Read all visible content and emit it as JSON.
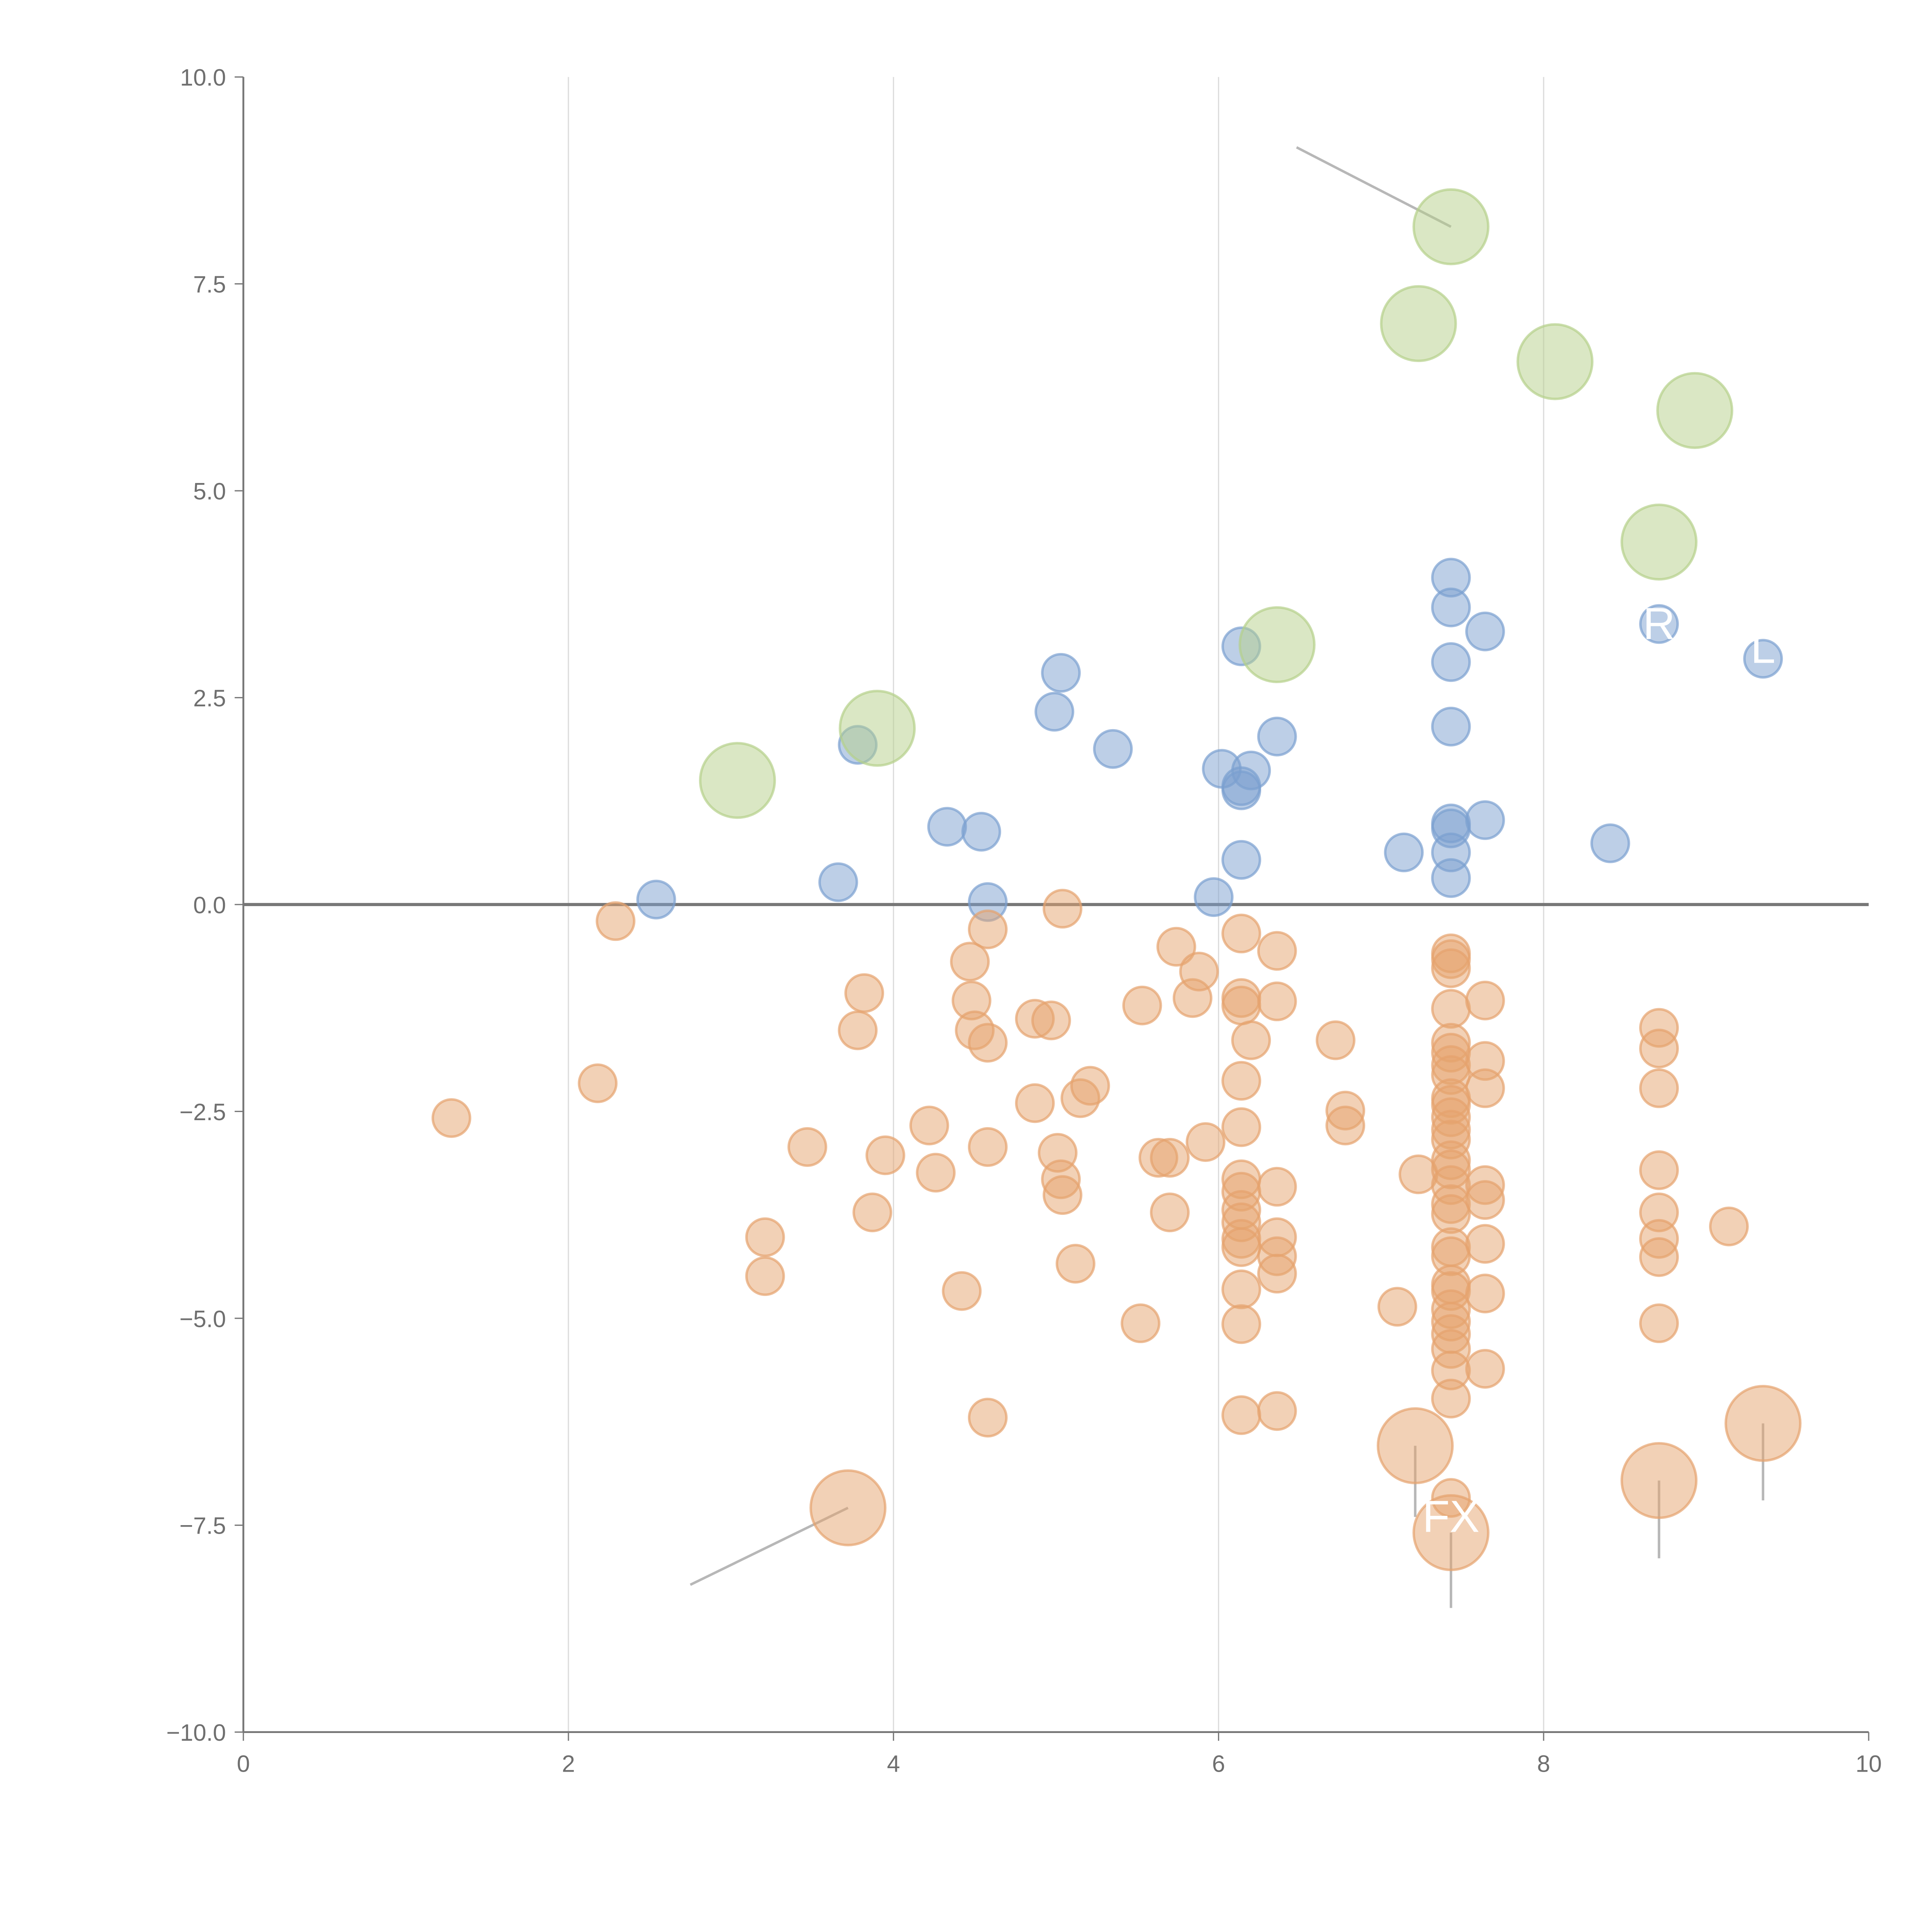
{
  "chart_data": {
    "type": "scatter",
    "title": "",
    "xlabel": "",
    "ylabel": "",
    "xlim": [
      0,
      10
    ],
    "ylim": [
      -10,
      10
    ],
    "grid": "vertical",
    "x_ticks": [
      "0",
      "2",
      "4",
      "6",
      "8",
      "10"
    ],
    "y_ticks": [
      "10.0",
      "7.5",
      "5.0",
      "2.5",
      "0.0",
      "−2.5",
      "−5.0",
      "−7.5",
      "−10.0"
    ],
    "colors": {
      "blue": "#7b9fd0",
      "green": "#b5d08a",
      "orange": "#e5a36d"
    },
    "series": [
      {
        "name": "blue",
        "color": "#7b9fd0",
        "size": 1,
        "points": [
          [
            2.54,
            0.06
          ],
          [
            3.66,
            0.27
          ],
          [
            3.78,
            1.93
          ],
          [
            4.33,
            0.94
          ],
          [
            4.54,
            0.88
          ],
          [
            4.58,
            0.03
          ],
          [
            5.03,
            2.8
          ],
          [
            4.99,
            2.33
          ],
          [
            5.35,
            1.88
          ],
          [
            5.97,
            0.09
          ],
          [
            6.02,
            1.64
          ],
          [
            6.14,
            3.12
          ],
          [
            6.2,
            1.62
          ],
          [
            6.14,
            1.43
          ],
          [
            6.14,
            1.38
          ],
          [
            6.14,
            0.54
          ],
          [
            6.36,
            2.03
          ],
          [
            7.14,
            0.63
          ],
          [
            7.43,
            3.95
          ],
          [
            7.43,
            3.59
          ],
          [
            7.43,
            2.93
          ],
          [
            7.43,
            2.15
          ],
          [
            7.43,
            0.98
          ],
          [
            7.43,
            0.92
          ],
          [
            7.43,
            0.63
          ],
          [
            7.43,
            0.32
          ],
          [
            7.64,
            3.3
          ],
          [
            7.64,
            1.02
          ],
          [
            8.41,
            0.74
          ],
          [
            8.71,
            3.39
          ],
          [
            9.35,
            2.97
          ]
        ]
      },
      {
        "name": "green",
        "color": "#b5d08a",
        "size": 4,
        "points": [
          [
            3.04,
            1.5
          ],
          [
            3.9,
            2.13
          ],
          [
            6.36,
            3.14
          ],
          [
            7.23,
            7.02
          ],
          [
            7.43,
            8.19
          ],
          [
            8.07,
            6.56
          ],
          [
            8.71,
            4.38
          ],
          [
            8.93,
            5.97
          ]
        ]
      },
      {
        "name": "orange",
        "color": "#e5a36d",
        "size": 1,
        "points": [
          [
            1.28,
            -2.58
          ],
          [
            2.18,
            -2.16
          ],
          [
            2.29,
            -0.2
          ],
          [
            3.21,
            -4.02
          ],
          [
            3.21,
            -4.49
          ],
          [
            3.47,
            -2.93
          ],
          [
            3.78,
            -1.52
          ],
          [
            3.82,
            -1.07
          ],
          [
            3.87,
            -3.72
          ],
          [
            3.95,
            -3.03
          ],
          [
            4.22,
            -2.67
          ],
          [
            4.26,
            -3.24
          ],
          [
            4.42,
            -4.67
          ],
          [
            4.47,
            -0.69
          ],
          [
            4.48,
            -1.16
          ],
          [
            4.5,
            -1.52
          ],
          [
            4.58,
            -0.3
          ],
          [
            4.58,
            -1.67
          ],
          [
            4.58,
            -2.93
          ],
          [
            4.58,
            -6.2
          ],
          [
            4.87,
            -2.4
          ],
          [
            4.87,
            -1.38
          ],
          [
            4.97,
            -1.4
          ],
          [
            5.01,
            -3.0
          ],
          [
            5.03,
            -3.32
          ],
          [
            5.04,
            -0.05
          ],
          [
            5.04,
            -3.51
          ],
          [
            5.12,
            -4.34
          ],
          [
            5.15,
            -2.34
          ],
          [
            5.21,
            -2.19
          ],
          [
            5.52,
            -5.06
          ],
          [
            5.53,
            -1.22
          ],
          [
            5.63,
            -3.06
          ],
          [
            5.7,
            -3.06
          ],
          [
            5.7,
            -3.72
          ],
          [
            5.74,
            -0.51
          ],
          [
            5.84,
            -1.13
          ],
          [
            5.88,
            -0.81
          ],
          [
            5.92,
            -2.87
          ],
          [
            6.14,
            -0.35
          ],
          [
            6.14,
            -1.13
          ],
          [
            6.14,
            -1.22
          ],
          [
            6.14,
            -2.13
          ],
          [
            6.14,
            -2.69
          ],
          [
            6.14,
            -3.32
          ],
          [
            6.14,
            -3.47
          ],
          [
            6.14,
            -3.69
          ],
          [
            6.14,
            -3.84
          ],
          [
            6.14,
            -4.04
          ],
          [
            6.14,
            -4.14
          ],
          [
            6.14,
            -4.65
          ],
          [
            6.14,
            -5.07
          ],
          [
            6.14,
            -6.17
          ],
          [
            6.2,
            -1.64
          ],
          [
            6.36,
            -0.56
          ],
          [
            6.36,
            -1.17
          ],
          [
            6.36,
            -3.41
          ],
          [
            6.36,
            -4.02
          ],
          [
            6.36,
            -4.25
          ],
          [
            6.36,
            -4.46
          ],
          [
            6.36,
            -6.12
          ],
          [
            6.72,
            -1.64
          ],
          [
            6.78,
            -2.49
          ],
          [
            6.78,
            -2.67
          ],
          [
            7.1,
            -4.86
          ],
          [
            7.23,
            -3.26
          ],
          [
            7.43,
            -0.59
          ],
          [
            7.43,
            -0.66
          ],
          [
            7.43,
            -0.77
          ],
          [
            7.43,
            -1.26
          ],
          [
            7.43,
            -1.67
          ],
          [
            7.43,
            -1.79
          ],
          [
            7.43,
            -1.94
          ],
          [
            7.43,
            -2.06
          ],
          [
            7.43,
            -2.34
          ],
          [
            7.43,
            -2.42
          ],
          [
            7.43,
            -2.57
          ],
          [
            7.43,
            -2.72
          ],
          [
            7.43,
            -2.84
          ],
          [
            7.43,
            -3.09
          ],
          [
            7.43,
            -3.2
          ],
          [
            7.43,
            -3.39
          ],
          [
            7.43,
            -3.62
          ],
          [
            7.43,
            -3.74
          ],
          [
            7.43,
            -4.14
          ],
          [
            7.43,
            -4.25
          ],
          [
            7.43,
            -4.59
          ],
          [
            7.43,
            -4.67
          ],
          [
            7.43,
            -4.89
          ],
          [
            7.43,
            -5.04
          ],
          [
            7.43,
            -5.19
          ],
          [
            7.43,
            -5.37
          ],
          [
            7.43,
            -5.63
          ],
          [
            7.43,
            -5.97
          ],
          [
            7.43,
            -7.17
          ],
          [
            7.64,
            -1.16
          ],
          [
            7.64,
            -1.89
          ],
          [
            7.64,
            -2.22
          ],
          [
            7.64,
            -3.39
          ],
          [
            7.64,
            -3.57
          ],
          [
            7.64,
            -4.1
          ],
          [
            7.64,
            -4.7
          ],
          [
            7.64,
            -5.61
          ],
          [
            8.71,
            -1.49
          ],
          [
            8.71,
            -1.74
          ],
          [
            8.71,
            -2.22
          ],
          [
            8.71,
            -3.21
          ],
          [
            8.71,
            -3.72
          ],
          [
            8.71,
            -4.04
          ],
          [
            8.71,
            -4.26
          ],
          [
            8.71,
            -5.06
          ],
          [
            9.14,
            -3.89
          ]
        ]
      },
      {
        "name": "orange-large",
        "color": "#e5a36d",
        "size": 4,
        "points": [
          [
            3.72,
            -7.29
          ],
          [
            7.21,
            -6.54
          ],
          [
            7.43,
            -7.59
          ],
          [
            8.71,
            -6.96
          ],
          [
            9.35,
            -6.27
          ]
        ]
      }
    ],
    "annotations": [
      {
        "text": "FX",
        "x": 7.43,
        "y": -7.4
      },
      {
        "text": "R",
        "x": 8.71,
        "y": 3.39
      },
      {
        "text": "L",
        "x": 9.35,
        "y": 3.1
      }
    ]
  }
}
